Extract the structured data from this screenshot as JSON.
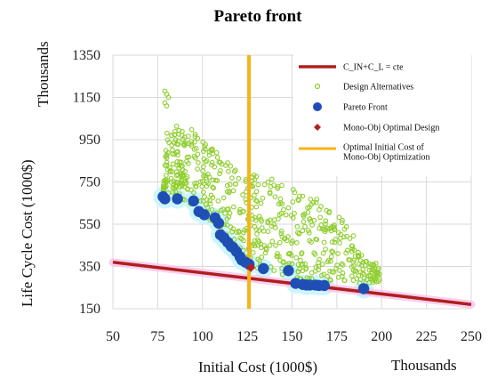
{
  "chart_data": {
    "type": "scatter",
    "title": "Pareto front",
    "xlabel": "Initial Cost (1000$)",
    "ylabel": "Life Cycle Cost (1000$)",
    "x_unit_label": "Thousands",
    "y_unit_label": "Thousands",
    "xlim": [
      50,
      250
    ],
    "ylim": [
      150,
      1350
    ],
    "x_ticks": [
      50,
      75,
      100,
      125,
      150,
      175,
      200,
      225,
      250
    ],
    "y_ticks": [
      150,
      350,
      550,
      750,
      950,
      1150,
      1350
    ],
    "grid": true,
    "legend_placement": "top-right",
    "colors": {
      "line": "#b01e1e",
      "alternatives": "#8fce2f",
      "pareto": "#1f4fb4",
      "mono": "#b22222",
      "vertical": "#f5b315",
      "highlight": "#ccf6ff",
      "line_glow": "#f8c4ea"
    },
    "series": [
      {
        "name": "C_IN+C_L     = cte",
        "kind": "line",
        "x": [
          50,
          250
        ],
        "y": [
          370,
          170
        ]
      },
      {
        "name": "Design Alternatives",
        "kind": "scatter-cloud",
        "upper_boundary": [
          [
            78,
            700
          ],
          [
            80,
            1000
          ],
          [
            90,
            1030
          ],
          [
            100,
            960
          ],
          [
            110,
            870
          ],
          [
            120,
            820
          ],
          [
            125,
            790
          ],
          [
            135,
            780
          ],
          [
            150,
            730
          ],
          [
            160,
            700
          ],
          [
            170,
            640
          ],
          [
            175,
            600
          ],
          [
            185,
            500
          ],
          [
            190,
            380
          ],
          [
            200,
            360
          ]
        ],
        "lower_boundary": [
          [
            78,
            690
          ],
          [
            85,
            680
          ],
          [
            95,
            640
          ],
          [
            100,
            600
          ],
          [
            108,
            530
          ],
          [
            115,
            440
          ],
          [
            120,
            400
          ],
          [
            125,
            360
          ],
          [
            130,
            340
          ],
          [
            140,
            320
          ],
          [
            155,
            290
          ],
          [
            170,
            280
          ],
          [
            190,
            270
          ],
          [
            200,
            280
          ]
        ],
        "outliers": [
          [
            79,
            1180
          ],
          [
            80,
            1165
          ],
          [
            81,
            1150
          ],
          [
            79,
            1125
          ],
          [
            80,
            1110
          ]
        ]
      },
      {
        "name": "Pareto Front",
        "kind": "scatter",
        "x": [
          78,
          79,
          86,
          95,
          98,
          101,
          107,
          109,
          110,
          112,
          114,
          116,
          117,
          119,
          121,
          122,
          124,
          126,
          134,
          148,
          152,
          156,
          158,
          160,
          163,
          165,
          168,
          190
        ],
        "y": [
          680,
          670,
          670,
          660,
          610,
          595,
          580,
          555,
          500,
          485,
          465,
          445,
          440,
          420,
          395,
          380,
          370,
          360,
          340,
          330,
          270,
          265,
          262,
          262,
          262,
          260,
          260,
          245
        ]
      },
      {
        "name": "Mono-Obj Optimal Design",
        "kind": "scatter",
        "x": [
          127
        ],
        "y": [
          345
        ]
      },
      {
        "name": "Optimal Initial Cost of Mono-Obj Optimization",
        "kind": "vline",
        "x": [
          126
        ]
      }
    ]
  }
}
